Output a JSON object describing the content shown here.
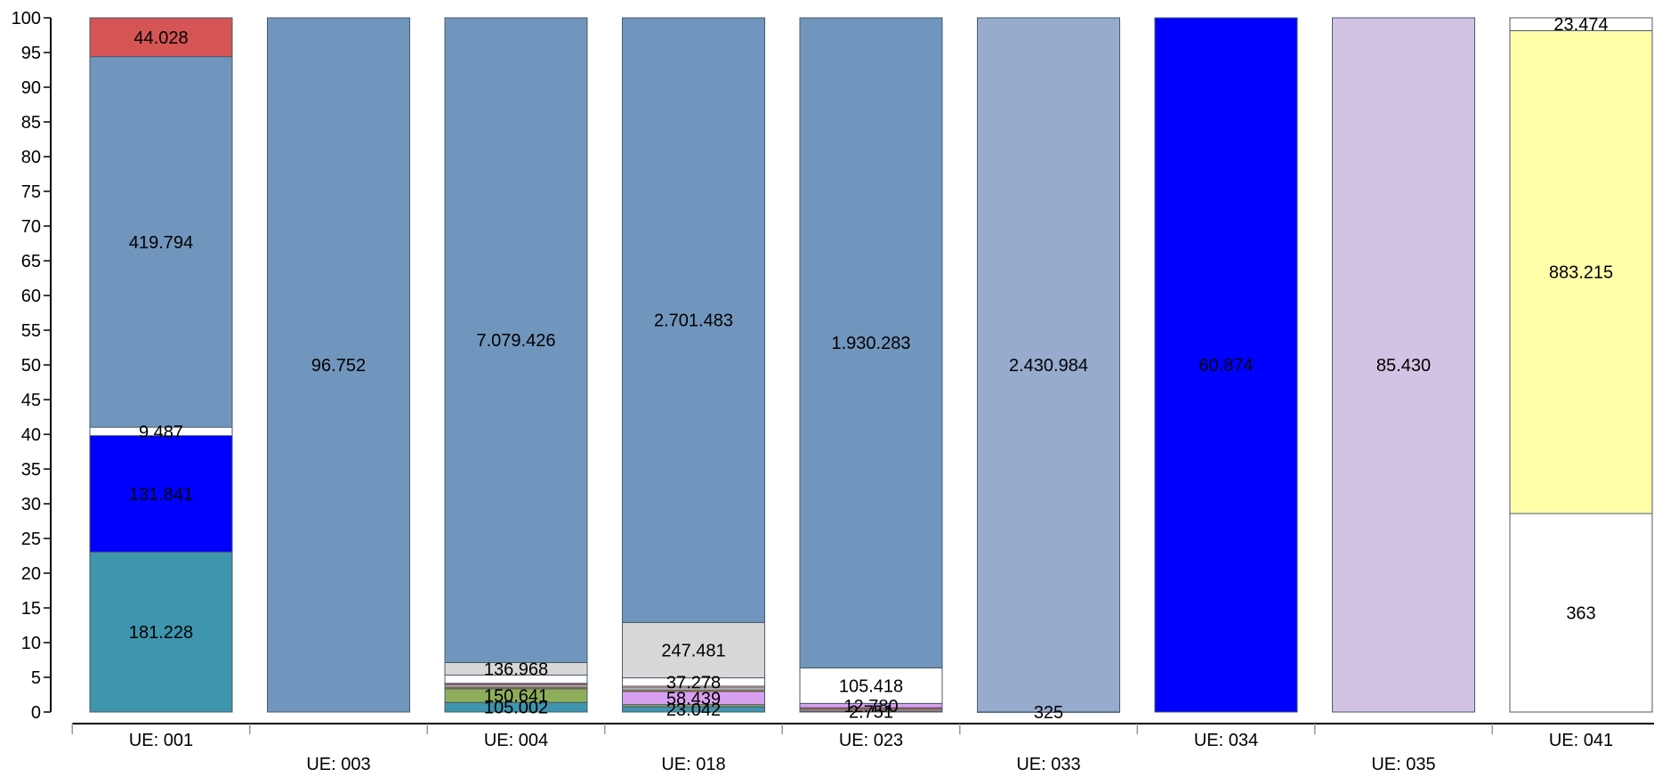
{
  "chart_data": {
    "type": "bar",
    "stacked": true,
    "normalized_percent": true,
    "ylim": [
      0,
      100
    ],
    "yticks": [
      0,
      5,
      10,
      15,
      20,
      25,
      30,
      35,
      40,
      45,
      50,
      55,
      60,
      65,
      70,
      75,
      80,
      85,
      90,
      95,
      100
    ],
    "grid": false,
    "categories": [
      "UE: 001",
      "UE: 003",
      "UE: 004",
      "UE: 018",
      "UE: 023",
      "UE: 033",
      "UE: 034",
      "UE: 035",
      "UE: 041"
    ],
    "stacks": [
      {
        "category": "UE: 001",
        "segments": [
          {
            "value": 181.228,
            "label": "181.228",
            "color": "#3e95ae"
          },
          {
            "value": 131.841,
            "label": "131.841",
            "color": "#0000ff"
          },
          {
            "value": 9.487,
            "label": "9.487",
            "color": "#ffffff"
          },
          {
            "value": 419.794,
            "label": "419.794",
            "color": "#7196bd"
          },
          {
            "value": 44.028,
            "label": "44.028",
            "color": "#d55555"
          }
        ]
      },
      {
        "category": "UE: 003",
        "segments": [
          {
            "value": 96.752,
            "label": "96.752",
            "color": "#7196bd"
          }
        ]
      },
      {
        "category": "UE: 004",
        "segments": [
          {
            "value": 105.002,
            "label": "105.002",
            "color": "#3e95ae"
          },
          {
            "value": 150.641,
            "label": "150.641",
            "color": "#8ead5a"
          },
          {
            "value": 20.0,
            "label": "",
            "color": "#b27a33"
          },
          {
            "value": 20.0,
            "label": "",
            "color": "#ffffff"
          },
          {
            "value": 20.0,
            "label": "",
            "color": "#d55555"
          },
          {
            "value": 90.0,
            "label": "",
            "color": "#ffffff"
          },
          {
            "value": 136.968,
            "label": "136.968",
            "color": "#d8d8d8"
          },
          {
            "value": 7079.426,
            "label": "7.079.426",
            "color": "#7196bd"
          }
        ]
      },
      {
        "category": "UE: 018",
        "segments": [
          {
            "value": 23.042,
            "label": "23.042",
            "color": "#3e95ae"
          },
          {
            "value": 10.0,
            "label": "",
            "color": "#8ead5a"
          },
          {
            "value": 58.439,
            "label": "58.439",
            "color": "#d9a0f0"
          },
          {
            "value": 8.0,
            "label": "",
            "color": "#b27a33"
          },
          {
            "value": 8.0,
            "label": "",
            "color": "#ffffff"
          },
          {
            "value": 8.0,
            "label": "",
            "color": "#e8b090"
          },
          {
            "value": 37.278,
            "label": "37.278",
            "color": "#ffffff"
          },
          {
            "value": 247.481,
            "label": "247.481",
            "color": "#d8d8d8"
          },
          {
            "value": 2701.483,
            "label": "2.701.483",
            "color": "#7196bd"
          }
        ]
      },
      {
        "category": "UE: 023",
        "segments": [
          {
            "value": 2.751,
            "label": "2.751",
            "color": "#b27a33"
          },
          {
            "value": 5.0,
            "label": "",
            "color": "#e8b090"
          },
          {
            "value": 5.0,
            "label": "",
            "color": "#d55555"
          },
          {
            "value": 12.78,
            "label": "12.780",
            "color": "#d9a0f0"
          },
          {
            "value": 105.418,
            "label": "105.418",
            "color": "#ffffff"
          },
          {
            "value": 1930.283,
            "label": "1.930.283",
            "color": "#7196bd"
          }
        ]
      },
      {
        "category": "UE: 033",
        "segments": [
          {
            "value": 325,
            "label": "325",
            "color": "#ffffff"
          },
          {
            "value": 2430984,
            "label": "2.430.984",
            "color": "#96abce"
          }
        ]
      },
      {
        "category": "UE: 034",
        "segments": [
          {
            "value": 60.874,
            "label": "60.874",
            "color": "#0000ff"
          }
        ]
      },
      {
        "category": "UE: 035",
        "segments": [
          {
            "value": 85.43,
            "label": "85.430",
            "color": "#d2c2e4"
          }
        ]
      },
      {
        "category": "UE: 041",
        "segments": [
          {
            "value": 363,
            "label": "363",
            "color": "#ffffff"
          },
          {
            "value": 883.215,
            "label": "883.215",
            "color": "#ffffaa"
          },
          {
            "value": 23.474,
            "label": "23.474",
            "color": "#ffffff"
          }
        ]
      }
    ]
  }
}
